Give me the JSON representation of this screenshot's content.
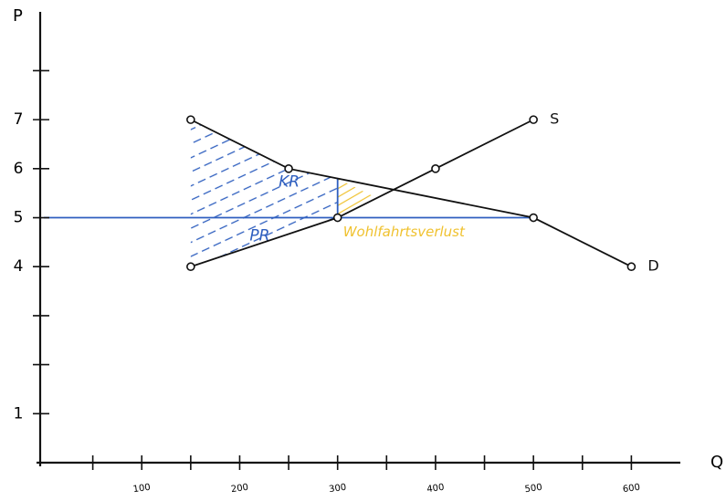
{
  "chart_data": {
    "type": "line",
    "x_label": "Q",
    "y_label": "P",
    "xlim": [
      0,
      650
    ],
    "ylim": [
      0,
      9.2
    ],
    "xticks": [
      100,
      200,
      300,
      400,
      500,
      600
    ],
    "xticks_minor": [
      50,
      150,
      250,
      350,
      450,
      550
    ],
    "yticks": [
      1,
      4,
      5,
      6,
      7
    ],
    "yticks_minor": [
      2,
      3,
      8
    ],
    "series": [
      {
        "name": "S",
        "color": "#111111",
        "x": [
          150,
          300,
          400,
          500
        ],
        "values": [
          4,
          5,
          6,
          7
        ]
      },
      {
        "name": "D",
        "color": "#111111",
        "x": [
          150,
          250,
          500,
          600
        ],
        "values": [
          7,
          6,
          5,
          4
        ]
      }
    ],
    "reference_lines": [
      {
        "color": "#2f5fbf",
        "x": [
          0,
          500
        ],
        "y": [
          5,
          5
        ]
      },
      {
        "color": "#2f5fbf",
        "x": [
          300,
          300
        ],
        "y": [
          5,
          5.8
        ]
      }
    ],
    "areas": [
      {
        "label": "KR",
        "color": "#2f5fbf",
        "x": [
          150,
          250,
          300,
          300,
          150
        ],
        "y": [
          7,
          6,
          5.8,
          5,
          5
        ]
      },
      {
        "label": "PR",
        "color": "#2f5fbf",
        "x": [
          150,
          300,
          150
        ],
        "y": [
          5,
          5,
          4
        ]
      },
      {
        "label": "Wohlfahrtsverlust",
        "color": "#f0c230",
        "x": [
          300,
          300,
          340
        ],
        "y": [
          5.8,
          5,
          5.4
        ]
      }
    ]
  }
}
